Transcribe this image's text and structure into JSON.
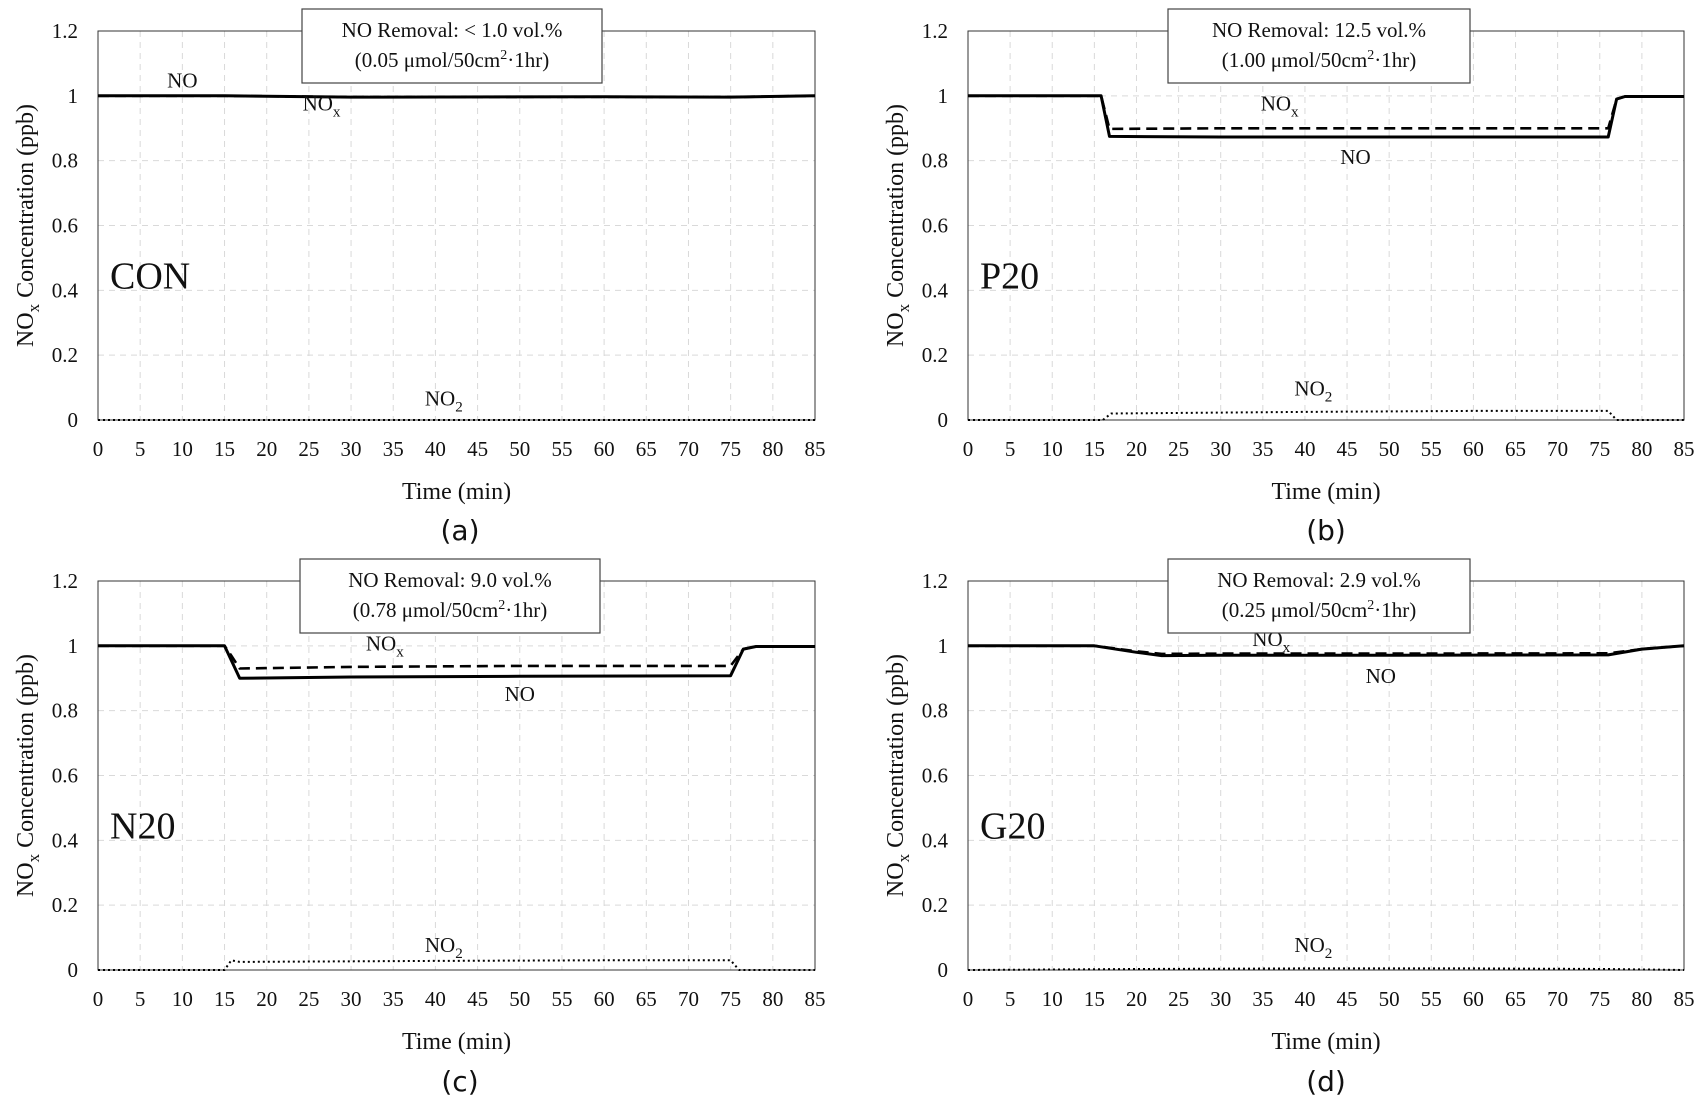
{
  "chart_data": [
    {
      "type": "line",
      "panel_label": "(a)",
      "sample_label": "CON",
      "annotation": {
        "line1": "NO Removal: < 1.0 vol.%",
        "line2_pre": "(0.05 μmol/50cm",
        "line2_sup": "2",
        "line2_post": "·1hr)"
      },
      "xlabel": "Time (min)",
      "ylabel_main": "NO",
      "ylabel_sub": "x",
      "ylabel_rest": " Concentration (ppb)",
      "xlim": [
        0,
        85
      ],
      "ylim": [
        0,
        1.2
      ],
      "x_ticks": [
        "0",
        "5",
        "10",
        "15",
        "20",
        "25",
        "30",
        "35",
        "40",
        "45",
        "50",
        "55",
        "60",
        "65",
        "70",
        "75",
        "80",
        "85"
      ],
      "y_ticks": [
        "0",
        "0.2",
        "0.4",
        "0.6",
        "0.8",
        "1",
        "1.2"
      ],
      "series": [
        {
          "name": "NO",
          "name_main": "NO",
          "name_sub": "",
          "style": "solid",
          "label_at": [
            10,
            1.025
          ],
          "x": [
            0,
            15,
            30,
            60,
            75,
            85
          ],
          "y": [
            1.0,
            1.0,
            0.996,
            0.997,
            0.996,
            1.0
          ]
        },
        {
          "name": "NOx",
          "name_main": "NO",
          "name_sub": "x",
          "style": "dashed",
          "label_at": [
            26.5,
            0.955
          ],
          "x": [
            0,
            15,
            30,
            60,
            75,
            85
          ],
          "y": [
            1.0,
            1.0,
            0.996,
            0.997,
            0.996,
            1.0
          ]
        },
        {
          "name": "NO2",
          "name_main": "NO",
          "name_sub": "2",
          "style": "dotted",
          "label_at": [
            41,
            0.045
          ],
          "x": [
            0,
            85
          ],
          "y": [
            0.0,
            0.0
          ]
        }
      ]
    },
    {
      "type": "line",
      "panel_label": "(b)",
      "sample_label": "P20",
      "annotation": {
        "line1": "NO Removal: 12.5 vol.%",
        "line2_pre": "(1.00 μmol/50cm",
        "line2_sup": "2",
        "line2_post": "·1hr)"
      },
      "xlabel": "Time (min)",
      "ylabel_main": "NO",
      "ylabel_sub": "x",
      "ylabel_rest": " Concentration (ppb)",
      "xlim": [
        0,
        85
      ],
      "ylim": [
        0,
        1.2
      ],
      "x_ticks": [
        "0",
        "5",
        "10",
        "15",
        "20",
        "25",
        "30",
        "35",
        "40",
        "45",
        "50",
        "55",
        "60",
        "65",
        "70",
        "75",
        "80",
        "85"
      ],
      "y_ticks": [
        "0",
        "0.2",
        "0.4",
        "0.6",
        "0.8",
        "1",
        "1.2"
      ],
      "series": [
        {
          "name": "NO",
          "name_main": "NO",
          "name_sub": "",
          "style": "solid",
          "label_at": [
            46,
            0.79
          ],
          "x": [
            0,
            15.8,
            16.8,
            30,
            50,
            76,
            77,
            78,
            85
          ],
          "y": [
            1.0,
            1.0,
            0.875,
            0.873,
            0.873,
            0.873,
            0.99,
            0.998,
            0.998
          ]
        },
        {
          "name": "NOx",
          "name_main": "NO",
          "name_sub": "x",
          "style": "dashed",
          "label_at": [
            37,
            0.955
          ],
          "x": [
            0,
            15.8,
            16.8,
            30,
            50,
            76,
            77,
            78,
            85
          ],
          "y": [
            1.0,
            1.0,
            0.898,
            0.9,
            0.9,
            0.9,
            0.99,
            0.998,
            0.998
          ]
        },
        {
          "name": "NO2",
          "name_main": "NO",
          "name_sub": "2",
          "style": "dotted",
          "label_at": [
            41,
            0.075
          ],
          "x": [
            0,
            16,
            17,
            40,
            60,
            76,
            77,
            85
          ],
          "y": [
            0.0,
            0.0,
            0.02,
            0.025,
            0.028,
            0.028,
            0.0,
            0.0
          ]
        }
      ]
    },
    {
      "type": "line",
      "panel_label": "(c)",
      "sample_label": "N20",
      "annotation": {
        "line1": "NO Removal: 9.0 vol.%",
        "line2_pre": "(0.78 μmol/50cm",
        "line2_sup": "2",
        "line2_post": "·1hr)"
      },
      "xlabel": "Time (min)",
      "ylabel_main": "NO",
      "ylabel_sub": "x",
      "ylabel_rest": " Concentration (ppb)",
      "xlim": [
        0,
        85
      ],
      "ylim": [
        0,
        1.2
      ],
      "x_ticks": [
        "0",
        "5",
        "10",
        "15",
        "20",
        "25",
        "30",
        "35",
        "40",
        "45",
        "50",
        "55",
        "60",
        "65",
        "70",
        "75",
        "80",
        "85"
      ],
      "y_ticks": [
        "0",
        "0.2",
        "0.4",
        "0.6",
        "0.8",
        "1",
        "1.2"
      ],
      "series": [
        {
          "name": "NO",
          "name_main": "NO",
          "name_sub": "",
          "style": "solid",
          "label_at": [
            50,
            0.83
          ],
          "x": [
            0,
            15,
            16.8,
            30,
            50,
            75,
            76.5,
            78,
            85
          ],
          "y": [
            1.0,
            1.0,
            0.9,
            0.904,
            0.906,
            0.908,
            0.99,
            0.998,
            0.998
          ]
        },
        {
          "name": "NOx",
          "name_main": "NO",
          "name_sub": "x",
          "style": "dashed",
          "label_at": [
            34,
            0.985
          ],
          "x": [
            0,
            15,
            15.8,
            16.8,
            30,
            50,
            75,
            76.5,
            78,
            85
          ],
          "y": [
            1.0,
            1.0,
            0.97,
            0.93,
            0.935,
            0.938,
            0.938,
            0.99,
            0.998,
            0.998
          ]
        },
        {
          "name": "NO2",
          "name_main": "NO",
          "name_sub": "2",
          "style": "dotted",
          "label_at": [
            41,
            0.055
          ],
          "x": [
            0,
            15,
            15.8,
            16.8,
            40,
            60,
            75,
            76,
            85
          ],
          "y": [
            0.0,
            0.0,
            0.03,
            0.025,
            0.028,
            0.03,
            0.03,
            0.0,
            0.0
          ]
        }
      ]
    },
    {
      "type": "line",
      "panel_label": "(d)",
      "sample_label": "G20",
      "annotation": {
        "line1": "NO Removal: 2.9 vol.%",
        "line2_pre": "(0.25 μmol/50cm",
        "line2_sup": "2",
        "line2_post": "·1hr)"
      },
      "xlabel": "Time (min)",
      "ylabel_main": "NO",
      "ylabel_sub": "x",
      "ylabel_rest": " Concentration (ppb)",
      "xlim": [
        0,
        85
      ],
      "ylim": [
        0,
        1.2
      ],
      "x_ticks": [
        "0",
        "5",
        "10",
        "15",
        "20",
        "25",
        "30",
        "35",
        "40",
        "45",
        "50",
        "55",
        "60",
        "65",
        "70",
        "75",
        "80",
        "85"
      ],
      "y_ticks": [
        "0",
        "0.2",
        "0.4",
        "0.6",
        "0.8",
        "1",
        "1.2"
      ],
      "series": [
        {
          "name": "NO",
          "name_main": "NO",
          "name_sub": "",
          "style": "solid",
          "label_at": [
            49,
            0.885
          ],
          "x": [
            0,
            15,
            20,
            23,
            30,
            50,
            76,
            80,
            85
          ],
          "y": [
            1.0,
            1.0,
            0.98,
            0.97,
            0.971,
            0.971,
            0.972,
            0.99,
            1.0
          ]
        },
        {
          "name": "NOx",
          "name_main": "NO",
          "name_sub": "x",
          "style": "dashed",
          "label_at": [
            36,
            1.0
          ],
          "x": [
            0,
            15,
            20,
            23,
            30,
            50,
            76,
            80,
            85
          ],
          "y": [
            1.0,
            1.0,
            0.983,
            0.975,
            0.976,
            0.976,
            0.977,
            0.99,
            1.0
          ]
        },
        {
          "name": "NO2",
          "name_main": "NO",
          "name_sub": "2",
          "style": "dotted",
          "label_at": [
            41,
            0.055
          ],
          "x": [
            0,
            20,
            40,
            60,
            76,
            85
          ],
          "y": [
            0.0,
            0.003,
            0.005,
            0.005,
            0.003,
            0.0
          ]
        }
      ]
    }
  ],
  "colors": {
    "line": "#000000",
    "grid": "#d9d9d9",
    "axis": "#333333",
    "text": "#111111"
  }
}
